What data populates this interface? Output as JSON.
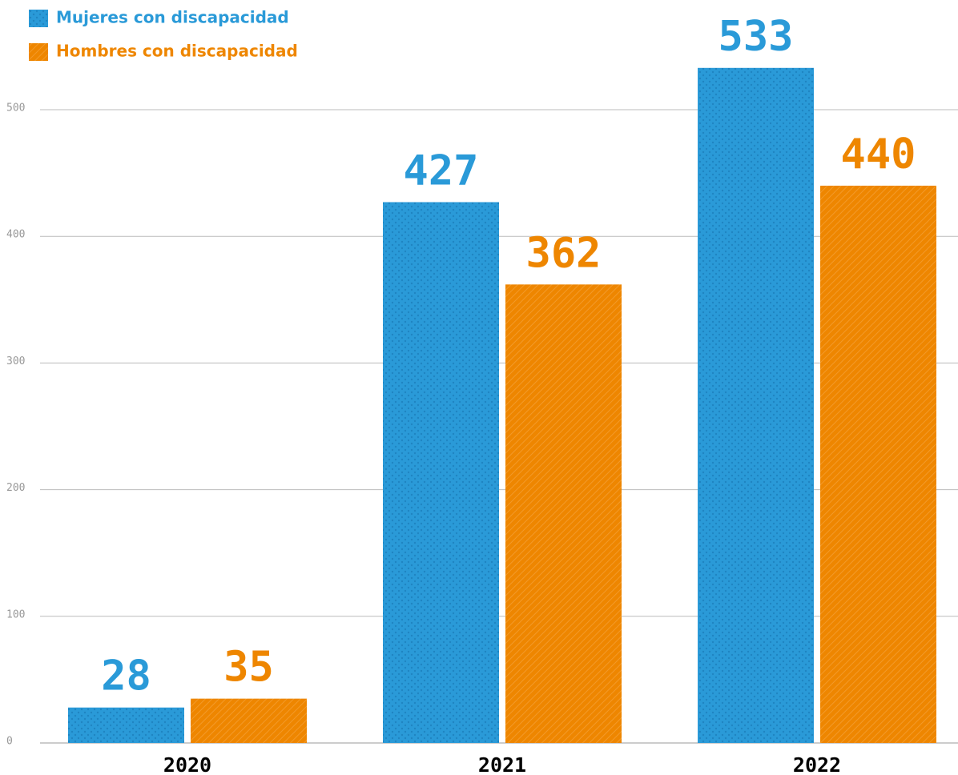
{
  "chart_data": {
    "type": "bar",
    "categories": [
      "2020",
      "2021",
      "2022"
    ],
    "series": [
      {
        "name": "Mujeres con discapacidad",
        "color": "#2a9ad8",
        "values": [
          28,
          427,
          533
        ]
      },
      {
        "name": "Hombres con discapacidad",
        "color": "#ee8600",
        "values": [
          35,
          362,
          440
        ]
      }
    ],
    "ylim": [
      0,
      500
    ],
    "yticks": [
      0,
      100,
      200,
      300,
      400,
      500
    ],
    "grid": true
  }
}
